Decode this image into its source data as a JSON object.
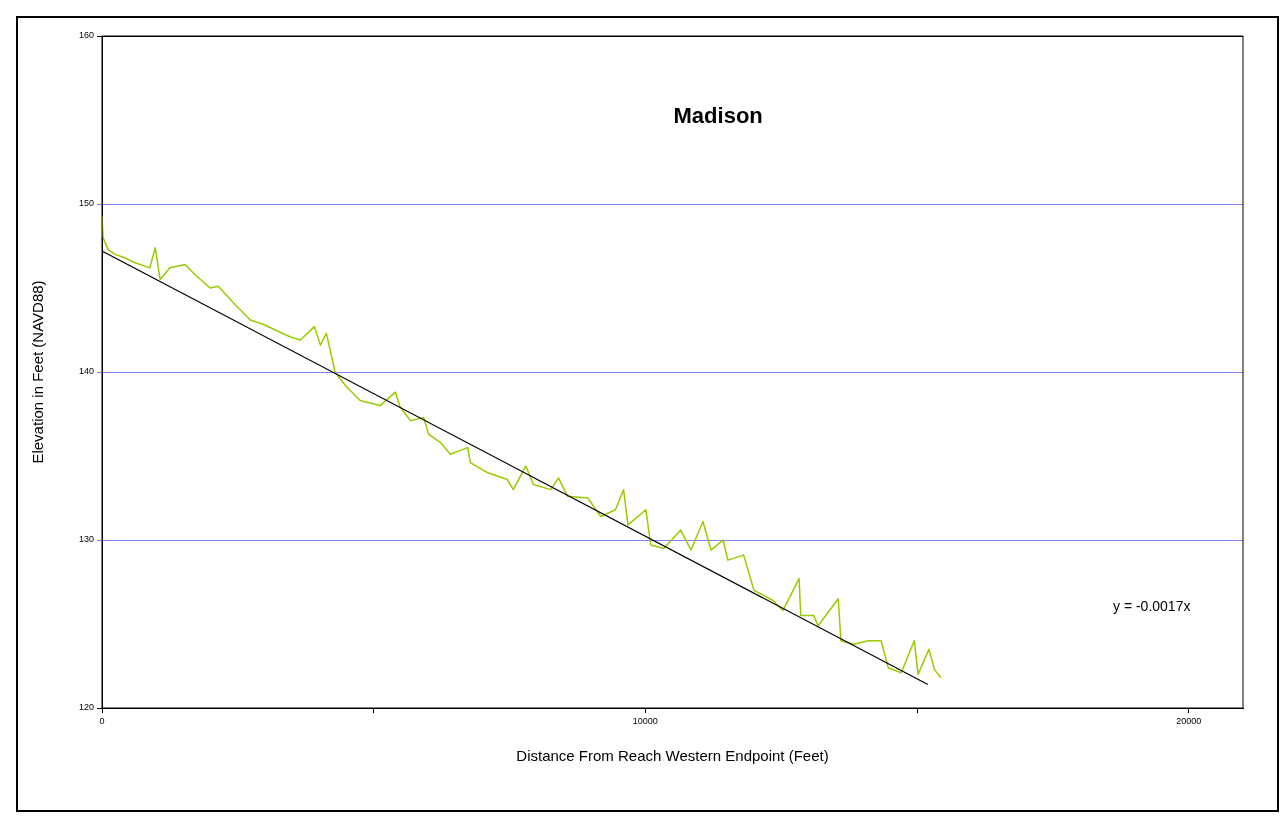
{
  "chart_data": {
    "type": "line",
    "title": "Madison",
    "xlabel": "Distance From Reach Western Endpoint (Feet)",
    "ylabel": "Elevation in Feet (NAVD88)",
    "xlim": [
      0,
      21000
    ],
    "xticks": [
      0,
      {
        "value": 5000,
        "label": null
      },
      10000,
      {
        "value": 15000,
        "label": null
      },
      20000
    ],
    "ylim": [
      120,
      160
    ],
    "yticks": [
      120,
      130,
      140,
      150,
      160
    ],
    "grid": "y",
    "legend": false,
    "marker": "none",
    "line_style": "solid",
    "annotations": [
      "y = -0.0017x"
    ],
    "series": [
      {
        "color": "#99cc00",
        "x": [
          0,
          20,
          110,
          240,
          420,
          610,
          880,
          980,
          1070,
          1250,
          1530,
          1710,
          1990,
          2140,
          2450,
          2730,
          3000,
          3190,
          3460,
          3650,
          3910,
          4020,
          4130,
          4290,
          4480,
          4750,
          5120,
          5400,
          5490,
          5680,
          5920,
          6010,
          6230,
          6410,
          6730,
          6780,
          7100,
          7460,
          7570,
          7800,
          7940,
          8260,
          8400,
          8570,
          8940,
          9180,
          9450,
          9600,
          9680,
          10010,
          10100,
          10340,
          10650,
          10840,
          11060,
          11210,
          11430,
          11520,
          11810,
          12000,
          12350,
          12530,
          12830,
          12860,
          13100,
          13180,
          13550,
          13600,
          13840,
          14100,
          14340,
          14470,
          14710,
          14950,
          15020,
          15220,
          15320,
          15440
        ],
        "values": [
          149.3,
          148.0,
          147.3,
          147.0,
          146.8,
          146.5,
          146.2,
          147.4,
          145.5,
          146.2,
          146.4,
          145.8,
          145.0,
          145.1,
          144.0,
          143.1,
          142.8,
          142.5,
          142.1,
          141.9,
          142.7,
          141.6,
          142.3,
          140.0,
          139.2,
          138.3,
          138.0,
          138.8,
          137.9,
          137.1,
          137.3,
          136.3,
          135.8,
          135.1,
          135.5,
          134.6,
          134.0,
          133.6,
          133.0,
          134.4,
          133.3,
          133.0,
          133.7,
          132.6,
          132.5,
          131.4,
          131.8,
          133.0,
          130.9,
          131.8,
          129.7,
          129.5,
          130.6,
          129.4,
          131.1,
          129.4,
          130.0,
          128.8,
          129.1,
          127.0,
          126.4,
          125.8,
          127.7,
          125.5,
          125.5,
          124.9,
          126.5,
          124.0,
          123.8,
          124.0,
          124.0,
          122.4,
          122.1,
          124.0,
          122.0,
          123.5,
          122.3,
          121.8
        ]
      },
      {
        "type": "line",
        "color": "#000000",
        "x": [
          0,
          15200
        ],
        "values": [
          147.2,
          121.4
        ]
      }
    ]
  }
}
